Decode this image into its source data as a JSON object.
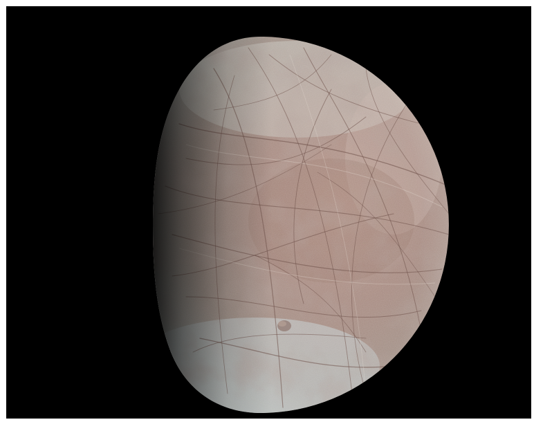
{
  "image": {
    "subject": "moon-disk",
    "phase": "gibbous",
    "colors": {
      "space": "#000000",
      "frame": "#ffffff",
      "surface_light": "#d6cfc6",
      "surface_mid": "#a58f86",
      "surface_reddish": "#9a7c75",
      "surface_blueish": "#c9d1d3",
      "terminator_shadow": "#1a1614",
      "lineae": "#6e5148"
    }
  }
}
